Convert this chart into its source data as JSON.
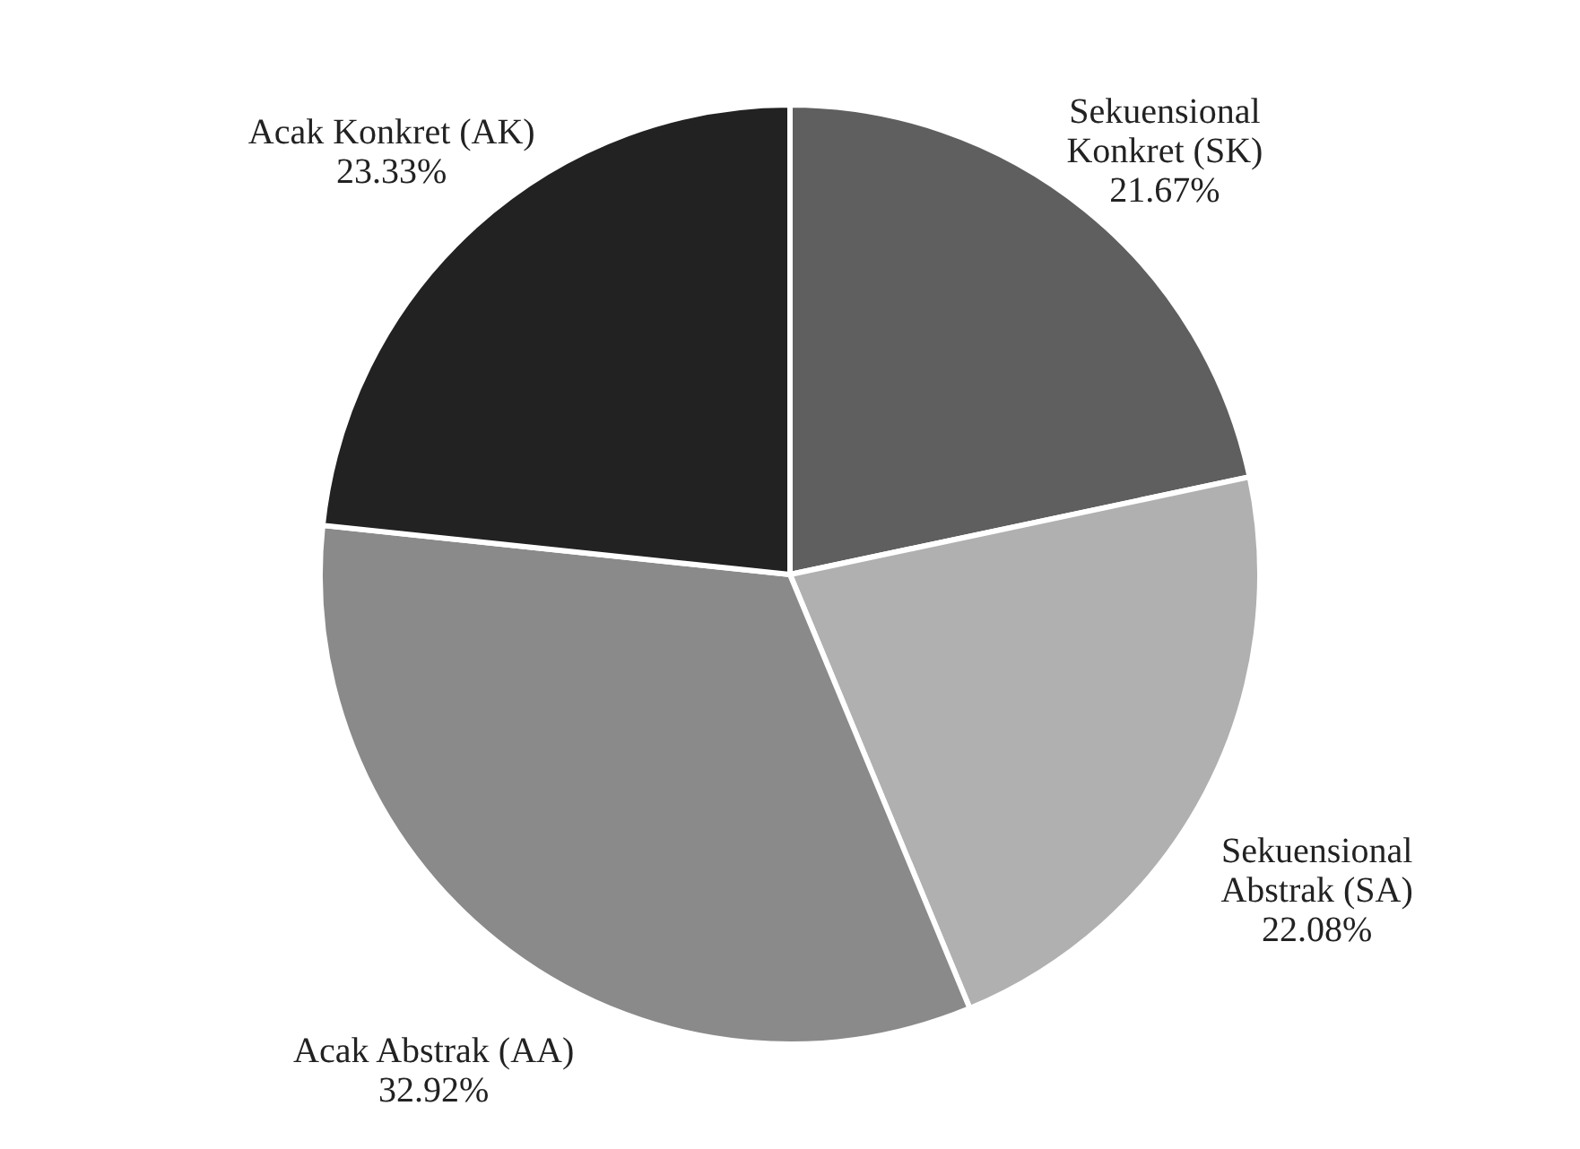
{
  "chart_data": {
    "type": "pie",
    "categories": [
      "Sekuensional Konkret (SK)",
      "Sekuensional Abstrak (SA)",
      "Acak Abstrak (AA)",
      "Acak Konkret (AK)"
    ],
    "values": [
      21.67,
      22.08,
      32.92,
      23.33
    ],
    "value_labels": [
      "21.67%",
      "22.08%",
      "32.92%",
      "23.33%"
    ],
    "colors": [
      "#5f5f5f",
      "#b0b0b0",
      "#8a8a8a",
      "#222222"
    ]
  }
}
